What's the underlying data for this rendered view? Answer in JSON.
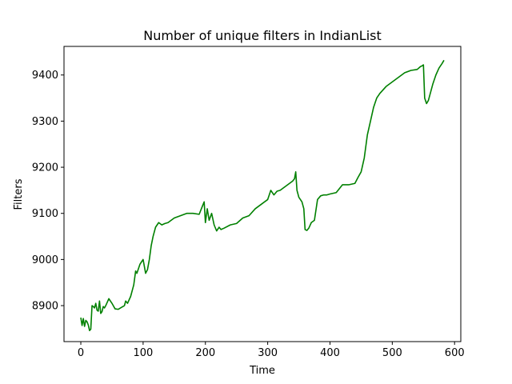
{
  "chart_data": {
    "type": "line",
    "title": "Number of unique filters in IndianList",
    "xlabel": "Time",
    "ylabel": "Filters",
    "xlim": [
      -27,
      610
    ],
    "ylim": [
      8822,
      9462
    ],
    "xticks": [
      0,
      100,
      200,
      300,
      400,
      500,
      600
    ],
    "xtick_labels": [
      "0",
      "100",
      "200",
      "300",
      "400",
      "500",
      "600"
    ],
    "yticks": [
      8900,
      9000,
      9100,
      9200,
      9300,
      9400
    ],
    "ytick_labels": [
      "8900",
      "9000",
      "9100",
      "9200",
      "9300",
      "9400"
    ],
    "grid": false,
    "legend": "none",
    "colors": {
      "series": "#008000"
    },
    "series": [
      {
        "x": [
          0,
          2,
          4,
          6,
          8,
          10,
          12,
          14,
          16,
          18,
          20,
          22,
          24,
          26,
          28,
          30,
          32,
          34,
          36,
          38,
          40,
          45,
          50,
          55,
          60,
          65,
          70,
          72,
          75,
          80,
          85,
          88,
          90,
          95,
          100,
          104,
          107,
          110,
          113,
          116,
          120,
          125,
          130,
          135,
          140,
          150,
          160,
          170,
          180,
          190,
          195,
          198,
          200,
          203,
          206,
          210,
          214,
          218,
          222,
          225,
          230,
          240,
          250,
          260,
          270,
          280,
          290,
          300,
          305,
          310,
          315,
          320,
          325,
          330,
          335,
          340,
          343,
          345,
          347,
          350,
          355,
          358,
          360,
          363,
          366,
          370,
          375,
          380,
          385,
          390,
          395,
          400,
          410,
          420,
          430,
          440,
          445,
          450,
          455,
          460,
          465,
          470,
          475,
          480,
          490,
          500,
          510,
          520,
          530,
          540,
          545,
          548,
          550,
          552,
          555,
          558,
          560,
          565,
          570,
          575,
          580,
          583
        ],
        "y": [
          8874,
          8857,
          8872,
          8855,
          8868,
          8865,
          8858,
          8846,
          8849,
          8900,
          8898,
          8895,
          8905,
          8890,
          8888,
          8910,
          8883,
          8887,
          8898,
          8895,
          8900,
          8915,
          8905,
          8893,
          8892,
          8896,
          8900,
          8910,
          8905,
          8920,
          8945,
          8975,
          8970,
          8990,
          9000,
          8970,
          8978,
          9000,
          9030,
          9050,
          9070,
          9080,
          9075,
          9078,
          9080,
          9090,
          9095,
          9100,
          9100,
          9098,
          9115,
          9125,
          9080,
          9110,
          9085,
          9100,
          9075,
          9062,
          9070,
          9065,
          9068,
          9075,
          9078,
          9090,
          9095,
          9110,
          9120,
          9130,
          9150,
          9140,
          9148,
          9150,
          9155,
          9160,
          9165,
          9170,
          9175,
          9190,
          9150,
          9135,
          9125,
          9110,
          9065,
          9063,
          9068,
          9080,
          9085,
          9130,
          9138,
          9140,
          9140,
          9142,
          9145,
          9162,
          9162,
          9165,
          9178,
          9190,
          9220,
          9270,
          9300,
          9330,
          9350,
          9360,
          9375,
          9385,
          9395,
          9405,
          9410,
          9412,
          9418,
          9420,
          9422,
          9350,
          9338,
          9345,
          9355,
          9380,
          9400,
          9415,
          9425,
          9432
        ]
      }
    ]
  }
}
